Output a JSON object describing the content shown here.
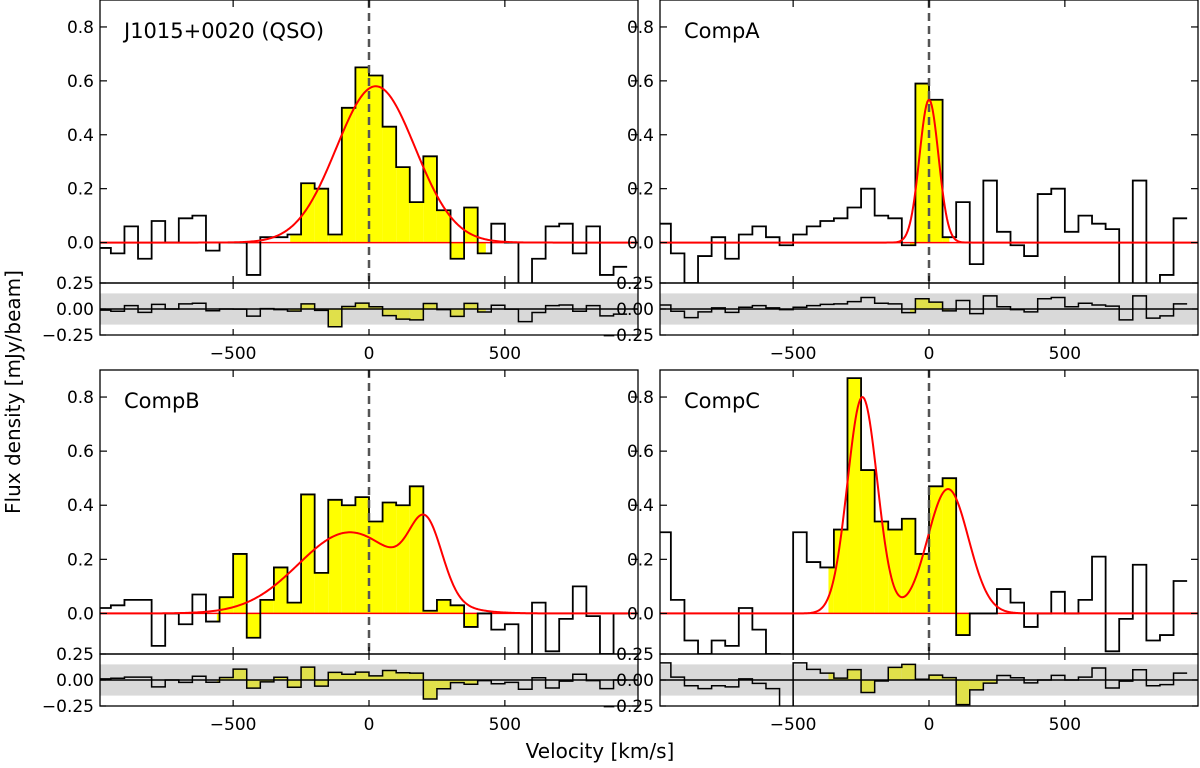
{
  "chart_data": {
    "type": "line",
    "ylabel": "Flux density [mJy/beam]",
    "xlabel": "Velocity [km/s]",
    "xlim": [
      -990,
      990
    ],
    "main_ylim": [
      -0.15,
      0.9
    ],
    "resid_ylim": [
      -0.25,
      0.25
    ],
    "main_yticks": [
      0.0,
      0.2,
      0.4,
      0.6,
      0.8
    ],
    "main_ytick_labels": [
      "0.0",
      "0.2",
      "0.4",
      "0.6",
      "0.8"
    ],
    "resid_yticks": [
      -0.25,
      0.0,
      0.25
    ],
    "resid_ytick_labels": [
      "−0.25",
      "0.00",
      "0.25"
    ],
    "xticks": [
      -500,
      0,
      500
    ],
    "xtick_labels": [
      "−500",
      "0",
      "500"
    ],
    "noise_band": 0.15,
    "colors": {
      "fill": "#ffff00",
      "fit": "#ff0000",
      "step": "#000000",
      "band": "#d9d9d9",
      "zero_line": "#555555"
    },
    "panels": [
      {
        "title": "J1015+0020 (QSO)",
        "bin_edges": [
          -990,
          -950,
          -900,
          -850,
          -800,
          -750,
          -700,
          -650,
          -600,
          -550,
          -500,
          -450,
          -400,
          -350,
          -300,
          -250,
          -200,
          -150,
          -100,
          -50,
          0,
          50,
          100,
          150,
          200,
          250,
          300,
          350,
          400,
          450,
          500,
          550,
          600,
          650,
          700,
          750,
          800,
          850,
          900,
          950,
          990
        ],
        "flux": [
          -0.02,
          -0.04,
          0.06,
          -0.06,
          0.08,
          0.0,
          0.09,
          0.1,
          -0.03,
          0.0,
          0.0,
          -0.12,
          0.02,
          0.02,
          0.03,
          0.22,
          0.2,
          0.03,
          0.5,
          0.65,
          0.62,
          0.43,
          0.28,
          0.15,
          0.32,
          0.12,
          -0.06,
          0.13,
          -0.04,
          0.07,
          0.0,
          -0.22,
          -0.06,
          0.06,
          0.07,
          -0.04,
          0.06,
          -0.12,
          -0.09
        ],
        "fill_range": [
          -290,
          430
        ],
        "fit": [
          {
            "amp": 0.58,
            "center": 25,
            "sigma": 145
          }
        ],
        "residual_scale": 0.55
      },
      {
        "title": "CompA",
        "bin_edges": [
          -990,
          -950,
          -900,
          -850,
          -800,
          -750,
          -700,
          -650,
          -600,
          -550,
          -500,
          -450,
          -400,
          -350,
          -300,
          -250,
          -200,
          -150,
          -100,
          -50,
          0,
          50,
          100,
          150,
          200,
          250,
          300,
          350,
          400,
          450,
          500,
          550,
          600,
          650,
          700,
          750,
          800,
          850,
          900,
          950,
          990
        ],
        "flux": [
          0.07,
          -0.04,
          -0.15,
          -0.05,
          0.02,
          -0.06,
          0.03,
          0.06,
          0.02,
          -0.01,
          0.03,
          0.06,
          0.08,
          0.09,
          0.13,
          0.2,
          0.1,
          0.09,
          -0.01,
          0.59,
          0.53,
          0.02,
          0.15,
          -0.08,
          0.23,
          0.04,
          -0.01,
          -0.05,
          0.18,
          0.2,
          0.04,
          0.1,
          0.07,
          0.05,
          -0.19,
          0.23,
          -0.16,
          -0.12,
          0.09
        ],
        "fill_range": [
          -70,
          75
        ],
        "fit": [
          {
            "amp": 0.53,
            "center": 0,
            "sigma": 35
          }
        ],
        "residual_scale": 0.55
      },
      {
        "title": "CompB",
        "bin_edges": [
          -990,
          -950,
          -900,
          -850,
          -800,
          -750,
          -700,
          -650,
          -600,
          -550,
          -500,
          -450,
          -400,
          -350,
          -300,
          -250,
          -200,
          -150,
          -100,
          -50,
          0,
          50,
          100,
          150,
          200,
          250,
          300,
          350,
          400,
          450,
          500,
          550,
          600,
          650,
          700,
          750,
          800,
          850,
          900,
          950,
          990
        ],
        "flux": [
          0.02,
          0.03,
          0.05,
          0.05,
          -0.12,
          0.0,
          -0.04,
          0.07,
          -0.03,
          0.06,
          0.22,
          -0.09,
          0.05,
          0.17,
          0.04,
          0.44,
          0.15,
          0.42,
          0.4,
          0.43,
          0.34,
          0.41,
          0.4,
          0.47,
          0.01,
          0.05,
          0.03,
          -0.05,
          0.0,
          -0.06,
          -0.04,
          -0.16,
          0.04,
          -0.14,
          -0.02,
          0.1,
          -0.01,
          -0.15,
          0.0
        ],
        "fill_range": [
          -560,
          400
        ],
        "fit": [
          {
            "amp": 0.3,
            "center": -70,
            "sigma": 190
          },
          {
            "amp": 0.26,
            "center": 210,
            "sigma": 60
          }
        ],
        "residual_scale": 0.55
      },
      {
        "title": "CompC",
        "bin_edges": [
          -990,
          -950,
          -900,
          -850,
          -800,
          -750,
          -700,
          -650,
          -600,
          -550,
          -500,
          -450,
          -400,
          -350,
          -300,
          -250,
          -200,
          -150,
          -100,
          -50,
          0,
          50,
          100,
          150,
          200,
          250,
          300,
          350,
          400,
          450,
          500,
          550,
          600,
          650,
          700,
          750,
          800,
          850,
          900,
          950,
          990
        ],
        "flux": [
          0.3,
          0.05,
          -0.1,
          -0.15,
          -0.1,
          -0.12,
          0.02,
          -0.06,
          -0.15,
          -0.6,
          0.3,
          0.19,
          0.17,
          0.31,
          0.87,
          0.53,
          0.34,
          0.31,
          0.35,
          0.22,
          0.47,
          0.5,
          -0.08,
          0.0,
          0.0,
          0.09,
          0.04,
          -0.05,
          0.0,
          0.08,
          0.0,
          0.05,
          0.21,
          -0.14,
          -0.02,
          0.18,
          -0.1,
          -0.08,
          0.12
        ],
        "fill_range": [
          -370,
          250
        ],
        "fit": [
          {
            "amp": 0.8,
            "center": -245,
            "sigma": 55
          },
          {
            "amp": 0.46,
            "center": 70,
            "sigma": 75
          }
        ],
        "residual_scale": 0.55
      }
    ]
  }
}
